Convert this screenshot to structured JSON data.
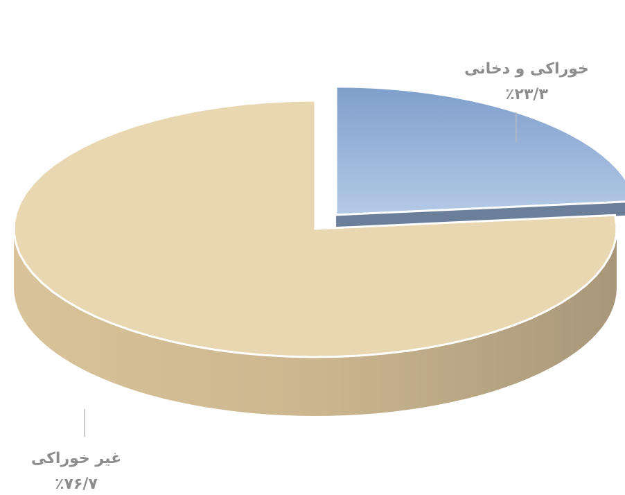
{
  "chart_data": {
    "type": "pie",
    "categories": [
      "خوراکی و دخانی",
      "غیر خوراکی"
    ],
    "values": [
      23.3,
      76.7
    ],
    "value_labels": [
      "٪۲۳/۳",
      "٪۷۶/۷"
    ],
    "colors": [
      "#93b1d9",
      "#e9d7b2"
    ]
  }
}
